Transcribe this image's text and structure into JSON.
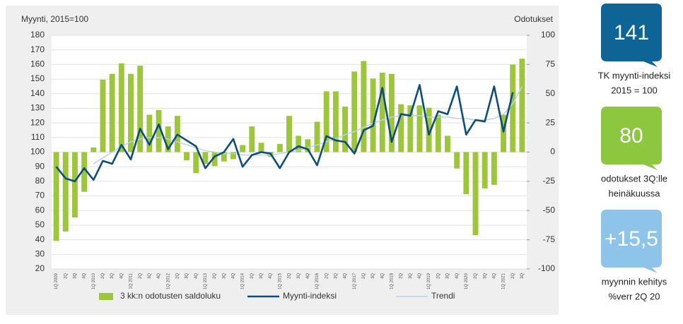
{
  "chart_data": {
    "type": "combo",
    "y_label": "Myynti,  2015=100",
    "y2_label": "Odotukset",
    "categories": [
      "1Q 2009",
      "2Q",
      "3Q",
      "4Q",
      "1Q 2010",
      "2Q",
      "3Q",
      "4Q",
      "1Q 2011",
      "2Q",
      "3Q",
      "4Q",
      "1Q 2012",
      "2Q",
      "3Q",
      "4Q",
      "1Q 2013",
      "2Q",
      "3Q",
      "4Q",
      "1Q 2014",
      "2Q",
      "3Q",
      "4Q",
      "1Q 2015",
      "2Q",
      "3Q",
      "4Q",
      "1Q 2016",
      "2Q",
      "3Q",
      "4Q",
      "1Q 2017",
      "2Q",
      "3Q",
      "4Q",
      "1Q 2018",
      "2Q",
      "3Q",
      "4Q",
      "1Q 2019",
      "2Q",
      "3Q",
      "4Q",
      "1Q 2020",
      "2Q",
      "3Q",
      "4Q",
      "1Q 2021",
      "2Q",
      "3Q"
    ],
    "series": [
      {
        "name": "3 kk:n odotusten saldoluku",
        "type": "bar",
        "axis": "y2",
        "color": "#9dc63c",
        "values": [
          -76,
          -68,
          -56,
          -34,
          4,
          62,
          67,
          76,
          67,
          74,
          32,
          36,
          22,
          31,
          -7,
          -18,
          -10,
          -12,
          -8,
          -6,
          6,
          22,
          8,
          -4,
          7,
          31,
          14,
          11,
          26,
          52,
          52,
          39,
          69,
          78,
          63,
          68,
          67,
          41,
          40,
          40,
          38,
          32,
          14,
          -14,
          -36,
          -71,
          -31,
          -28,
          32,
          75,
          80
        ]
      },
      {
        "name": "Myynti-indeksi",
        "type": "line",
        "color": "#0e4d7a",
        "values": [
          90,
          82,
          80,
          89,
          81,
          94,
          92,
          105,
          95,
          116,
          105,
          119,
          102,
          112,
          108,
          104,
          89,
          97,
          100,
          109,
          90,
          98,
          100,
          99,
          89,
          100,
          104,
          102,
          91,
          111,
          108,
          107,
          99,
          115,
          118,
          144,
          107,
          126,
          125,
          146,
          112,
          128,
          126,
          145,
          112,
          122,
          121,
          145,
          114,
          141,
          null
        ]
      },
      {
        "name": "Trendi",
        "type": "trend",
        "color": "#b9d3e6",
        "values": [
          null,
          null,
          null,
          null,
          92,
          96,
          100,
          104,
          107,
          109,
          110,
          110,
          109,
          107,
          105,
          103,
          101,
          100,
          99,
          99,
          98,
          98,
          98,
          98,
          99,
          100,
          101,
          103,
          105,
          107,
          109,
          112,
          114,
          117,
          120,
          122,
          124,
          125,
          125,
          125,
          124,
          124,
          124,
          123,
          123,
          122,
          122,
          123,
          126,
          133,
          145
        ]
      }
    ],
    "ylim": [
      20,
      180
    ],
    "yticks": [
      20,
      30,
      40,
      50,
      60,
      70,
      80,
      90,
      100,
      110,
      120,
      130,
      140,
      150,
      160,
      170,
      180
    ],
    "y2lim": [
      -100,
      100
    ],
    "y2ticks": [
      -100,
      -75,
      -50,
      -25,
      0,
      25,
      50,
      75,
      100
    ],
    "grid": true
  },
  "side_panels": [
    {
      "value": "141",
      "color": "#0f6496",
      "caption": [
        "TK myynti-indeksi",
        "2015 = 100"
      ]
    },
    {
      "value": "80",
      "color": "#8dc63f",
      "caption": [
        "odotukset 3Q:lle",
        "heinäkuussa"
      ]
    },
    {
      "value": "+15,5",
      "color": "#8ec4ea",
      "caption": [
        "myynnin kehitys",
        "%verr 2Q 20"
      ]
    }
  ]
}
